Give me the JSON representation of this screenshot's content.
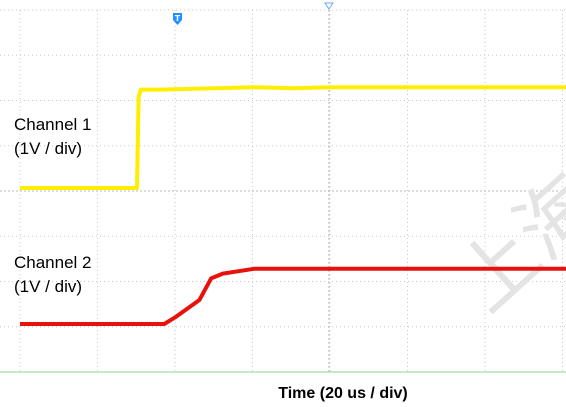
{
  "chart_data": {
    "type": "line",
    "title": "",
    "xlabel": "Time (20 us / div)",
    "ylabel": "",
    "xlim": [
      0,
      140
    ],
    "grid": true,
    "series": [
      {
        "name": "Channel 1",
        "scale": "(1V / div)",
        "color": "#ffee00",
        "x": [
          0,
          30,
          30.4,
          31,
          36,
          50,
          60,
          70,
          80,
          90,
          100,
          110,
          120,
          140
        ],
        "y": [
          0,
          0,
          1.9,
          2.05,
          2.05,
          2.08,
          2.1,
          2.08,
          2.1,
          2.1,
          2.1,
          2.1,
          2.1,
          2.1
        ]
      },
      {
        "name": "Channel 2",
        "scale": "(1V / div)",
        "color": "#e8120c",
        "x": [
          0,
          20,
          30,
          37,
          40,
          46,
          49,
          52,
          60,
          70,
          80,
          90,
          100,
          110,
          120,
          140
        ],
        "y": [
          0,
          0,
          0,
          0,
          0.15,
          0.5,
          0.95,
          1.05,
          1.15,
          1.15,
          1.15,
          1.15,
          1.15,
          1.15,
          1.15,
          1.15
        ]
      }
    ]
  },
  "markers": {
    "trigger_symbol": "T",
    "trigger_color": "#1e90ff",
    "watermark": "上海"
  }
}
